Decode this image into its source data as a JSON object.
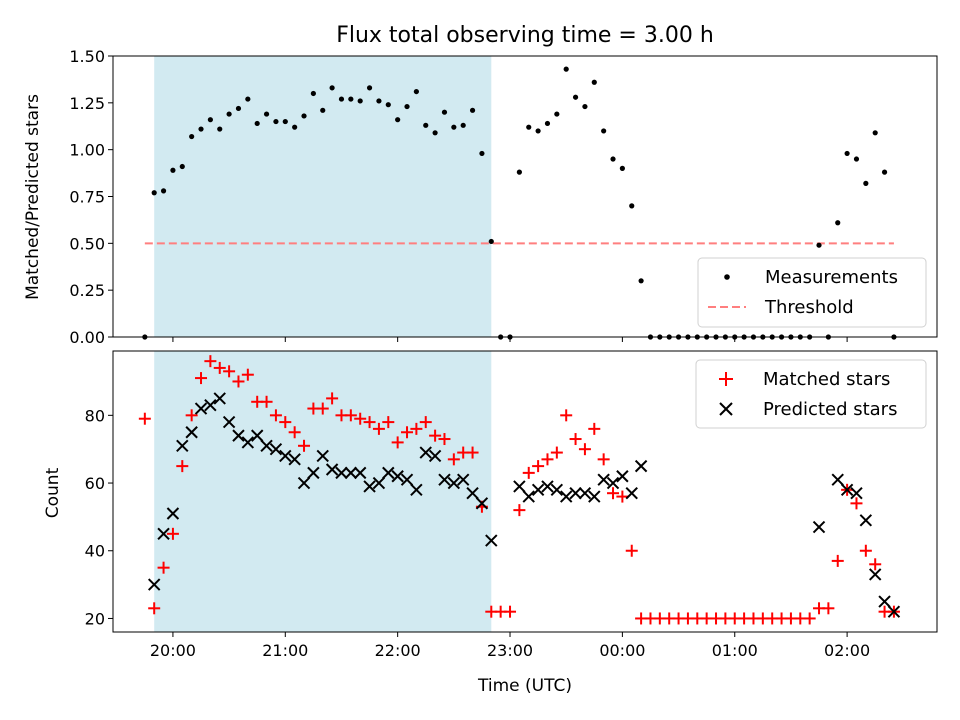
{
  "chart_data": [
    {
      "type": "scatter",
      "title": "Flux total observing time = 3.00 h",
      "xlabel": "",
      "ylabel": "Matched/Predicted stars",
      "ylim": [
        0.0,
        1.5
      ],
      "yticks": [
        0.0,
        0.25,
        0.5,
        0.75,
        1.0,
        1.25,
        1.5
      ],
      "ytick_labels": [
        "0.00",
        "0.25",
        "0.50",
        "0.75",
        "1.00",
        "1.25",
        "1.50"
      ],
      "xticks": [
        "20:00",
        "21:00",
        "22:00",
        "23:00",
        "00:00",
        "01:00",
        "02:00"
      ],
      "xtick_labels": [
        "",
        "",
        "",
        "",
        "",
        "",
        ""
      ],
      "xlim": [
        "19:28",
        "02:48"
      ],
      "highlight_span": {
        "from": "19:50",
        "to": "22:50",
        "color": "#add8e6"
      },
      "legend_position": "lower right",
      "series": [
        {
          "name": "Measurements",
          "marker": "dot",
          "color": "#000000",
          "points": [
            [
              "19:45",
              0.0
            ],
            [
              "19:50",
              0.77
            ],
            [
              "19:55",
              0.78
            ],
            [
              "20:00",
              0.89
            ],
            [
              "20:05",
              0.91
            ],
            [
              "20:10",
              1.07
            ],
            [
              "20:15",
              1.11
            ],
            [
              "20:20",
              1.16
            ],
            [
              "20:25",
              1.11
            ],
            [
              "20:30",
              1.19
            ],
            [
              "20:35",
              1.22
            ],
            [
              "20:40",
              1.27
            ],
            [
              "20:45",
              1.14
            ],
            [
              "20:50",
              1.19
            ],
            [
              "20:55",
              1.15
            ],
            [
              "21:00",
              1.15
            ],
            [
              "21:05",
              1.12
            ],
            [
              "21:10",
              1.18
            ],
            [
              "21:15",
              1.3
            ],
            [
              "21:20",
              1.21
            ],
            [
              "21:25",
              1.33
            ],
            [
              "21:30",
              1.27
            ],
            [
              "21:35",
              1.27
            ],
            [
              "21:40",
              1.26
            ],
            [
              "21:45",
              1.33
            ],
            [
              "21:50",
              1.26
            ],
            [
              "21:55",
              1.24
            ],
            [
              "22:00",
              1.16
            ],
            [
              "22:05",
              1.23
            ],
            [
              "22:10",
              1.31
            ],
            [
              "22:15",
              1.13
            ],
            [
              "22:20",
              1.09
            ],
            [
              "22:25",
              1.2
            ],
            [
              "22:30",
              1.12
            ],
            [
              "22:35",
              1.13
            ],
            [
              "22:40",
              1.21
            ],
            [
              "22:45",
              0.98
            ],
            [
              "22:50",
              0.51
            ],
            [
              "22:55",
              0.0
            ],
            [
              "23:00",
              0.0
            ],
            [
              "23:05",
              0.88
            ],
            [
              "23:10",
              1.12
            ],
            [
              "23:15",
              1.1
            ],
            [
              "23:20",
              1.14
            ],
            [
              "23:25",
              1.19
            ],
            [
              "23:30",
              1.43
            ],
            [
              "23:35",
              1.28
            ],
            [
              "23:40",
              1.23
            ],
            [
              "23:45",
              1.36
            ],
            [
              "23:50",
              1.1
            ],
            [
              "23:55",
              0.95
            ],
            [
              "00:00",
              0.9
            ],
            [
              "00:05",
              0.7
            ],
            [
              "00:10",
              0.3
            ],
            [
              "00:15",
              0.0
            ],
            [
              "00:20",
              0.0
            ],
            [
              "00:25",
              0.0
            ],
            [
              "00:30",
              0.0
            ],
            [
              "00:35",
              0.0
            ],
            [
              "00:40",
              0.0
            ],
            [
              "00:45",
              0.0
            ],
            [
              "00:50",
              0.0
            ],
            [
              "00:55",
              0.0
            ],
            [
              "01:00",
              0.0
            ],
            [
              "01:05",
              0.0
            ],
            [
              "01:10",
              0.0
            ],
            [
              "01:15",
              0.0
            ],
            [
              "01:20",
              0.0
            ],
            [
              "01:25",
              0.0
            ],
            [
              "01:30",
              0.0
            ],
            [
              "01:35",
              0.0
            ],
            [
              "01:40",
              0.0
            ],
            [
              "01:45",
              0.49
            ],
            [
              "01:50",
              0.0
            ],
            [
              "01:55",
              0.61
            ],
            [
              "02:00",
              0.98
            ],
            [
              "02:05",
              0.95
            ],
            [
              "02:10",
              0.82
            ],
            [
              "02:15",
              1.09
            ],
            [
              "02:20",
              0.88
            ],
            [
              "02:25",
              0.0
            ]
          ]
        },
        {
          "name": "Threshold",
          "marker": "dashed-line",
          "color": "#ff7f7f",
          "points": [
            [
              "19:45",
              0.5
            ],
            [
              "02:25",
              0.5
            ]
          ]
        }
      ]
    },
    {
      "type": "scatter",
      "title": "",
      "xlabel": "Time (UTC)",
      "ylabel": "Count",
      "ylim": [
        16,
        99
      ],
      "yticks": [
        20,
        40,
        60,
        80
      ],
      "ytick_labels": [
        "20",
        "40",
        "60",
        "80"
      ],
      "xticks": [
        "20:00",
        "21:00",
        "22:00",
        "23:00",
        "00:00",
        "01:00",
        "02:00"
      ],
      "xtick_labels": [
        "20:00",
        "21:00",
        "22:00",
        "23:00",
        "00:00",
        "01:00",
        "02:00"
      ],
      "xlim": [
        "19:28",
        "02:48"
      ],
      "highlight_span": {
        "from": "19:50",
        "to": "22:50",
        "color": "#add8e6"
      },
      "legend_position": "upper right",
      "series": [
        {
          "name": "Matched stars",
          "marker": "plus",
          "color": "#ff0000",
          "points": [
            [
              "19:45",
              79
            ],
            [
              "19:50",
              23
            ],
            [
              "19:55",
              35
            ],
            [
              "20:00",
              45
            ],
            [
              "20:05",
              65
            ],
            [
              "20:10",
              80
            ],
            [
              "20:15",
              91
            ],
            [
              "20:20",
              96
            ],
            [
              "20:25",
              94
            ],
            [
              "20:30",
              93
            ],
            [
              "20:35",
              90
            ],
            [
              "20:40",
              92
            ],
            [
              "20:45",
              84
            ],
            [
              "20:50",
              84
            ],
            [
              "20:55",
              80
            ],
            [
              "21:00",
              78
            ],
            [
              "21:05",
              75
            ],
            [
              "21:10",
              71
            ],
            [
              "21:15",
              82
            ],
            [
              "21:20",
              82
            ],
            [
              "21:25",
              85
            ],
            [
              "21:30",
              80
            ],
            [
              "21:35",
              80
            ],
            [
              "21:40",
              79
            ],
            [
              "21:45",
              78
            ],
            [
              "21:50",
              76
            ],
            [
              "21:55",
              78
            ],
            [
              "22:00",
              72
            ],
            [
              "22:05",
              75
            ],
            [
              "22:10",
              76
            ],
            [
              "22:15",
              78
            ],
            [
              "22:20",
              74
            ],
            [
              "22:25",
              73
            ],
            [
              "22:30",
              67
            ],
            [
              "22:35",
              69
            ],
            [
              "22:40",
              69
            ],
            [
              "22:45",
              53
            ],
            [
              "22:50",
              22
            ],
            [
              "22:55",
              22
            ],
            [
              "23:00",
              22
            ],
            [
              "23:05",
              52
            ],
            [
              "23:10",
              63
            ],
            [
              "23:15",
              65
            ],
            [
              "23:20",
              67
            ],
            [
              "23:25",
              69
            ],
            [
              "23:30",
              80
            ],
            [
              "23:35",
              73
            ],
            [
              "23:40",
              70
            ],
            [
              "23:45",
              76
            ],
            [
              "23:50",
              67
            ],
            [
              "23:55",
              57
            ],
            [
              "00:00",
              56
            ],
            [
              "00:05",
              40
            ],
            [
              "00:10",
              20
            ],
            [
              "00:15",
              20
            ],
            [
              "00:20",
              20
            ],
            [
              "00:25",
              20
            ],
            [
              "00:30",
              20
            ],
            [
              "00:35",
              20
            ],
            [
              "00:40",
              20
            ],
            [
              "00:45",
              20
            ],
            [
              "00:50",
              20
            ],
            [
              "00:55",
              20
            ],
            [
              "01:00",
              20
            ],
            [
              "01:05",
              20
            ],
            [
              "01:10",
              20
            ],
            [
              "01:15",
              20
            ],
            [
              "01:20",
              20
            ],
            [
              "01:25",
              20
            ],
            [
              "01:30",
              20
            ],
            [
              "01:35",
              20
            ],
            [
              "01:40",
              20
            ],
            [
              "01:45",
              23
            ],
            [
              "01:50",
              23
            ],
            [
              "01:55",
              37
            ],
            [
              "02:00",
              58
            ],
            [
              "02:05",
              54
            ],
            [
              "02:10",
              40
            ],
            [
              "02:15",
              36
            ],
            [
              "02:20",
              22
            ],
            [
              "02:25",
              22
            ]
          ]
        },
        {
          "name": "Predicted stars",
          "marker": "x",
          "color": "#000000",
          "points": [
            [
              "19:50",
              30
            ],
            [
              "19:55",
              45
            ],
            [
              "20:00",
              51
            ],
            [
              "20:05",
              71
            ],
            [
              "20:10",
              75
            ],
            [
              "20:15",
              82
            ],
            [
              "20:20",
              83
            ],
            [
              "20:25",
              85
            ],
            [
              "20:30",
              78
            ],
            [
              "20:35",
              74
            ],
            [
              "20:40",
              72
            ],
            [
              "20:45",
              74
            ],
            [
              "20:50",
              71
            ],
            [
              "20:55",
              70
            ],
            [
              "21:00",
              68
            ],
            [
              "21:05",
              67
            ],
            [
              "21:10",
              60
            ],
            [
              "21:15",
              63
            ],
            [
              "21:20",
              68
            ],
            [
              "21:25",
              64
            ],
            [
              "21:30",
              63
            ],
            [
              "21:35",
              63
            ],
            [
              "21:40",
              63
            ],
            [
              "21:45",
              59
            ],
            [
              "21:50",
              60
            ],
            [
              "21:55",
              63
            ],
            [
              "22:00",
              62
            ],
            [
              "22:05",
              61
            ],
            [
              "22:10",
              58
            ],
            [
              "22:15",
              69
            ],
            [
              "22:20",
              68
            ],
            [
              "22:25",
              61
            ],
            [
              "22:30",
              60
            ],
            [
              "22:35",
              61
            ],
            [
              "22:40",
              57
            ],
            [
              "22:45",
              54
            ],
            [
              "22:50",
              43
            ],
            [
              "23:05",
              59
            ],
            [
              "23:10",
              56
            ],
            [
              "23:15",
              58
            ],
            [
              "23:20",
              59
            ],
            [
              "23:25",
              58
            ],
            [
              "23:30",
              56
            ],
            [
              "23:35",
              57
            ],
            [
              "23:40",
              57
            ],
            [
              "23:45",
              56
            ],
            [
              "23:50",
              61
            ],
            [
              "23:55",
              60
            ],
            [
              "00:00",
              62
            ],
            [
              "00:05",
              57
            ],
            [
              "00:10",
              65
            ],
            [
              "01:45",
              47
            ],
            [
              "01:55",
              61
            ],
            [
              "02:00",
              58
            ],
            [
              "02:05",
              57
            ],
            [
              "02:10",
              49
            ],
            [
              "02:15",
              33
            ],
            [
              "02:20",
              25
            ],
            [
              "02:25",
              22
            ]
          ]
        }
      ]
    }
  ]
}
